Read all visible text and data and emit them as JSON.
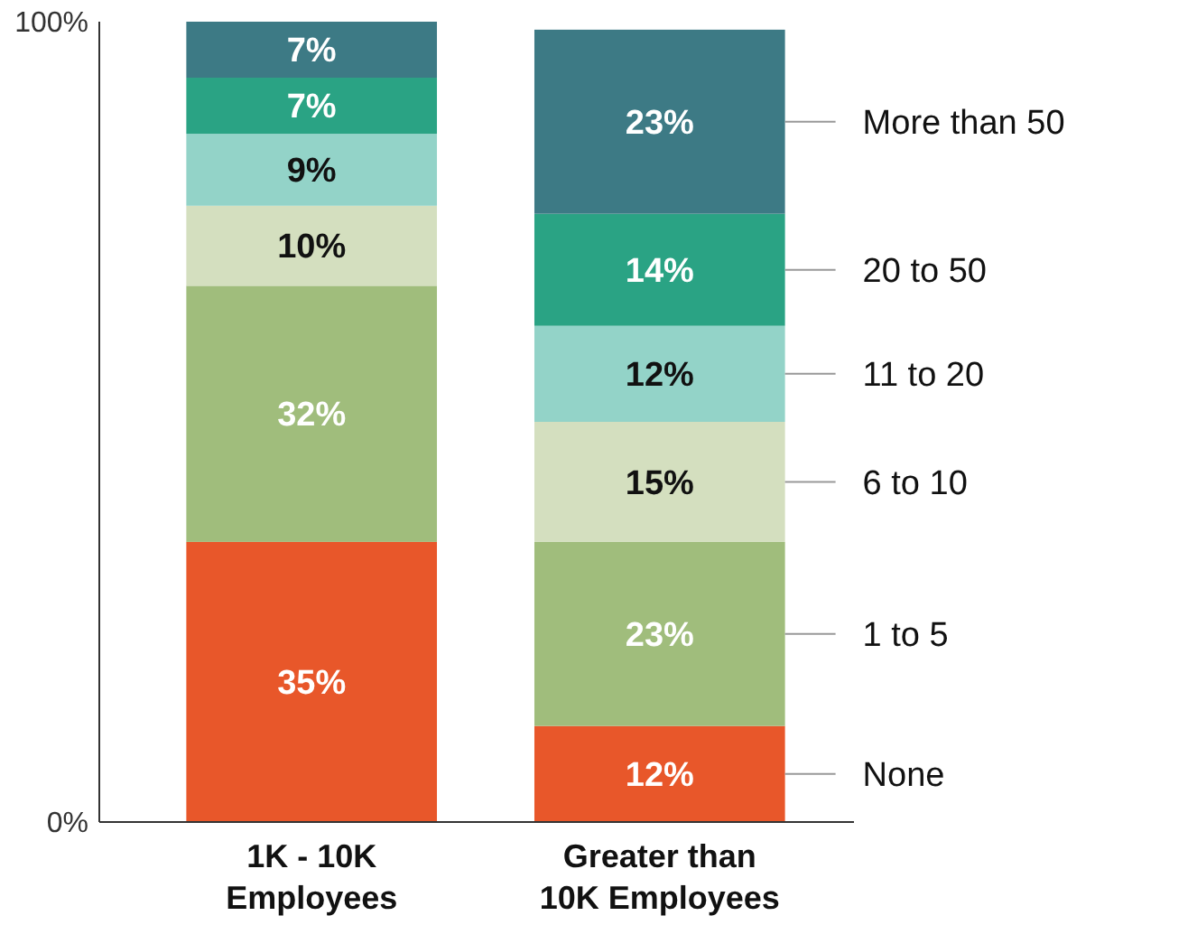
{
  "chart_data": {
    "type": "bar",
    "stacked": true,
    "categories": [
      "1K - 10K Employees",
      "Greater than 10K Employees"
    ],
    "series": [
      {
        "name": "None",
        "color": "#e8572a",
        "values": [
          35,
          12
        ],
        "value_labels": [
          "35%",
          "12%"
        ]
      },
      {
        "name": "1 to 5",
        "color": "#a0bd7c",
        "values": [
          32,
          23
        ],
        "value_labels": [
          "32%",
          "23%"
        ]
      },
      {
        "name": "6 to 10",
        "color": "#d4dfbf",
        "values": [
          10,
          15
        ],
        "value_labels": [
          "10%",
          "15%"
        ]
      },
      {
        "name": "11 to 20",
        "color": "#93d3c8",
        "values": [
          9,
          12
        ],
        "value_labels": [
          "9%",
          "12%"
        ]
      },
      {
        "name": "20 to 50",
        "color": "#2aa384",
        "values": [
          7,
          14
        ],
        "value_labels": [
          "7%",
          "14%"
        ]
      },
      {
        "name": "More than 50",
        "color": "#3d7a85",
        "values": [
          7,
          23
        ],
        "value_labels": [
          "7%",
          "23%"
        ]
      }
    ],
    "ylim": [
      0,
      100
    ],
    "yticks": [
      {
        "value": 0,
        "label": "0%"
      },
      {
        "value": 100,
        "label": "100%"
      }
    ],
    "legend": "right",
    "grid": false
  }
}
